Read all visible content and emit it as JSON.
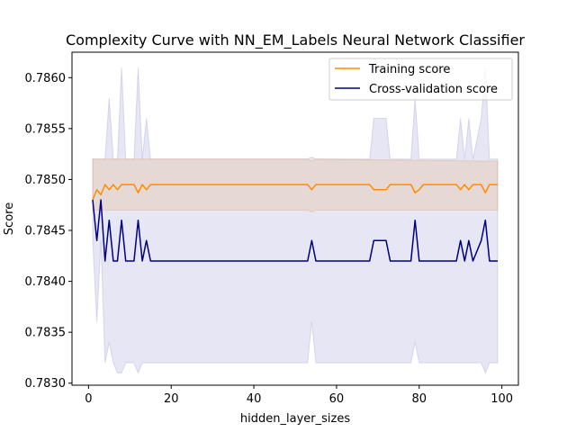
{
  "chart_data": {
    "type": "line",
    "title": "Complexity Curve with NN_EM_Labels Neural Network Classifier",
    "xlabel": "hidden_layer_sizes",
    "ylabel": "Score",
    "xlim": [
      -4,
      104
    ],
    "ylim": [
      0.78298,
      0.78625
    ],
    "xticks": [
      0,
      20,
      40,
      60,
      80,
      100
    ],
    "yticks": [
      0.783,
      0.7835,
      0.784,
      0.7845,
      0.785,
      0.7855,
      0.786
    ],
    "ytick_labels": [
      "0.7830",
      "0.7835",
      "0.7840",
      "0.7845",
      "0.7850",
      "0.7855",
      "0.7860"
    ],
    "legend_position": "top-right",
    "grid": false,
    "series": [
      {
        "name": "Training score",
        "color": "#ff8c00",
        "band_color": "#ff8c00",
        "points": [
          [
            1,
            0.7848
          ],
          [
            2,
            0.7849
          ],
          [
            3,
            0.78485
          ],
          [
            4,
            0.78495
          ],
          [
            5,
            0.7849
          ],
          [
            6,
            0.78495
          ],
          [
            7,
            0.7849
          ],
          [
            8,
            0.78495
          ],
          [
            9,
            0.78495
          ],
          [
            10,
            0.78495
          ],
          [
            11,
            0.78495
          ],
          [
            12,
            0.78487
          ],
          [
            13,
            0.78495
          ],
          [
            14,
            0.7849
          ],
          [
            15,
            0.78495
          ],
          [
            53,
            0.78495
          ],
          [
            54,
            0.7849
          ],
          [
            55,
            0.78495
          ],
          [
            68,
            0.78495
          ],
          [
            69,
            0.7849
          ],
          [
            72,
            0.7849
          ],
          [
            73,
            0.78495
          ],
          [
            78,
            0.78495
          ],
          [
            79,
            0.78487
          ],
          [
            80,
            0.7849
          ],
          [
            81,
            0.78495
          ],
          [
            89,
            0.78495
          ],
          [
            90,
            0.7849
          ],
          [
            91,
            0.78495
          ],
          [
            92,
            0.7849
          ],
          [
            93,
            0.78495
          ],
          [
            95,
            0.78495
          ],
          [
            96,
            0.78487
          ],
          [
            97,
            0.78495
          ],
          [
            99,
            0.78495
          ]
        ],
        "band": [
          [
            1,
            0.7852,
            0.7847
          ],
          [
            15,
            0.7852,
            0.7847
          ],
          [
            53,
            0.7852,
            0.7847
          ],
          [
            54,
            0.78518,
            0.78468
          ],
          [
            55,
            0.7852,
            0.7847
          ],
          [
            99,
            0.78518,
            0.7847
          ]
        ]
      },
      {
        "name": "Cross-validation score",
        "color": "#000080",
        "band_color": "#8080c8",
        "points": [
          [
            1,
            0.7848
          ],
          [
            2,
            0.7844
          ],
          [
            3,
            0.7848
          ],
          [
            4,
            0.7842
          ],
          [
            5,
            0.7846
          ],
          [
            6,
            0.7842
          ],
          [
            7,
            0.7842
          ],
          [
            8,
            0.7846
          ],
          [
            9,
            0.7842
          ],
          [
            10,
            0.7842
          ],
          [
            11,
            0.7842
          ],
          [
            12,
            0.7846
          ],
          [
            13,
            0.7842
          ],
          [
            14,
            0.7844
          ],
          [
            15,
            0.7842
          ],
          [
            53,
            0.7842
          ],
          [
            54,
            0.7844
          ],
          [
            55,
            0.7842
          ],
          [
            68,
            0.7842
          ],
          [
            69,
            0.7844
          ],
          [
            72,
            0.7844
          ],
          [
            73,
            0.7842
          ],
          [
            78,
            0.7842
          ],
          [
            79,
            0.7846
          ],
          [
            80,
            0.7842
          ],
          [
            89,
            0.7842
          ],
          [
            90,
            0.7844
          ],
          [
            91,
            0.7842
          ],
          [
            92,
            0.7844
          ],
          [
            93,
            0.7842
          ],
          [
            95,
            0.7844
          ],
          [
            96,
            0.7846
          ],
          [
            97,
            0.7842
          ],
          [
            99,
            0.7842
          ]
        ],
        "band": [
          [
            1,
            0.7852,
            0.7844
          ],
          [
            2,
            0.7852,
            0.7836
          ],
          [
            3,
            0.7852,
            0.7844
          ],
          [
            4,
            0.7852,
            0.7832
          ],
          [
            5,
            0.7858,
            0.7834
          ],
          [
            6,
            0.7852,
            0.7832
          ],
          [
            7,
            0.7852,
            0.7831
          ],
          [
            8,
            0.7861,
            0.7831
          ],
          [
            9,
            0.7852,
            0.7832
          ],
          [
            10,
            0.7852,
            0.7832
          ],
          [
            11,
            0.7852,
            0.7832
          ],
          [
            12,
            0.7861,
            0.7831
          ],
          [
            13,
            0.7852,
            0.7832
          ],
          [
            14,
            0.7856,
            0.7832
          ],
          [
            15,
            0.7852,
            0.7832
          ],
          [
            53,
            0.7852,
            0.7832
          ],
          [
            54,
            0.78522,
            0.7836
          ],
          [
            55,
            0.7852,
            0.7832
          ],
          [
            68,
            0.7852,
            0.7832
          ],
          [
            69,
            0.7856,
            0.7832
          ],
          [
            72,
            0.7856,
            0.7832
          ],
          [
            73,
            0.7852,
            0.7832
          ],
          [
            78,
            0.7852,
            0.7832
          ],
          [
            79,
            0.7858,
            0.7834
          ],
          [
            80,
            0.7852,
            0.7832
          ],
          [
            89,
            0.7852,
            0.7832
          ],
          [
            90,
            0.7856,
            0.7832
          ],
          [
            91,
            0.7852,
            0.7832
          ],
          [
            92,
            0.7856,
            0.7832
          ],
          [
            93,
            0.7852,
            0.7832
          ],
          [
            95,
            0.7856,
            0.7832
          ],
          [
            96,
            0.7861,
            0.7831
          ],
          [
            97,
            0.7852,
            0.7832
          ],
          [
            99,
            0.7852,
            0.7832
          ]
        ]
      }
    ]
  }
}
